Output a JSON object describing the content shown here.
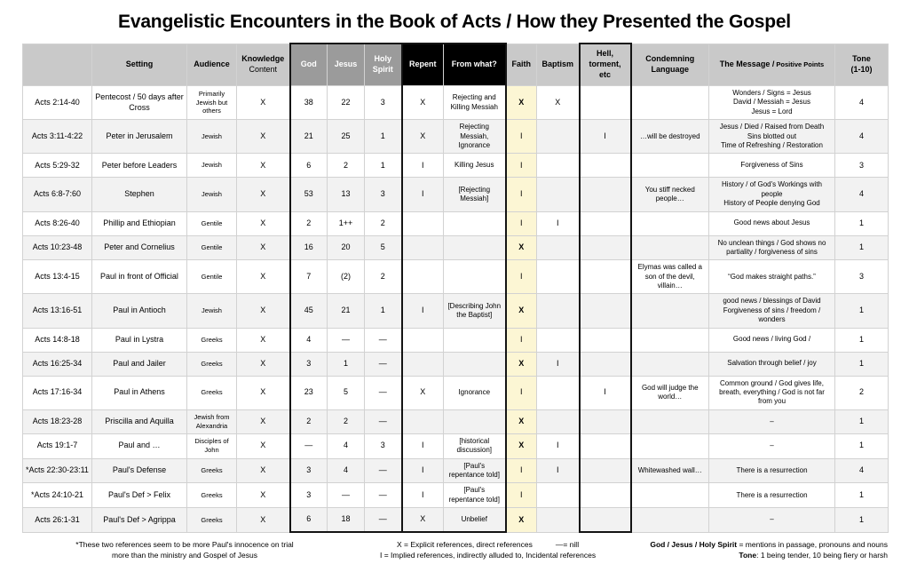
{
  "title": {
    "bold": "Evangelistic Encounters in the Book of Acts /",
    "regular": " How they Presented the Gospel"
  },
  "table": {
    "headers": {
      "ref": "",
      "setting": "Setting",
      "audience": "Audience",
      "knowledge_line1": "Knowledge",
      "knowledge_line2": "Content",
      "god": "God",
      "jesus": "Jesus",
      "holy_spirit": "Holy Spirit",
      "repent": "Repent",
      "from_what": "From what?",
      "faith": "Faith",
      "baptism": "Baptism",
      "hell": "Hell, torment, etc",
      "condemning": "Condemning Language",
      "message_main": "The Message /",
      "message_sub": " Positive Points",
      "tone_line1": "Tone",
      "tone_line2": "(1-10)"
    },
    "rows": [
      {
        "ref": "Acts 2:14-40",
        "setting": "Pentecost / 50 days after Cross",
        "audience": "Primarily Jewish but others",
        "knowledge": "X",
        "god": "38",
        "jesus": "22",
        "holy_spirit": "3",
        "repent": "X",
        "from_what": "Rejecting and Killing Messiah",
        "faith": "X",
        "baptism": "X",
        "hell": "",
        "condemning": "",
        "message": [
          "Wonders / Signs = Jesus",
          "David / Messiah = Jesus",
          "Jesus = Lord"
        ],
        "tone": "4"
      },
      {
        "ref": "Acts 3:11-4:22",
        "setting": "Peter in Jerusalem",
        "audience": "Jewish",
        "knowledge": "X",
        "god": "21",
        "jesus": "25",
        "holy_spirit": "1",
        "repent": "X",
        "from_what": "Rejecting Messiah, Ignorance",
        "faith": "I",
        "baptism": "",
        "hell": "I",
        "condemning": "…will be destroyed",
        "message": [
          "Jesus / Died / Raised from Death",
          "Sins blotted out",
          "Time of Refreshing / Restoration"
        ],
        "tone": "4"
      },
      {
        "ref": "Acts 5:29-32",
        "setting": "Peter before Leaders",
        "audience": "Jewish",
        "knowledge": "X",
        "god": "6",
        "jesus": "2",
        "holy_spirit": "1",
        "repent": "I",
        "from_what": "Killing Jesus",
        "faith": "I",
        "baptism": "",
        "hell": "",
        "condemning": "",
        "message": [
          "Forgiveness of Sins"
        ],
        "tone": "3"
      },
      {
        "ref": "Acts 6:8-7:60",
        "setting": "Stephen",
        "audience": "Jewish",
        "knowledge": "X",
        "god": "53",
        "jesus": "13",
        "holy_spirit": "3",
        "repent": "I",
        "from_what": "[Rejecting Messiah]",
        "faith": "I",
        "baptism": "",
        "hell": "",
        "condemning": "You stiff necked people…",
        "message": [
          "History / of God's Workings with people",
          "History of People denying God"
        ],
        "tone": "4"
      },
      {
        "ref": "Acts 8:26-40",
        "setting": "Phillip and Ethiopian",
        "audience": "Gentile",
        "knowledge": "X",
        "god": "2",
        "jesus": "1++",
        "holy_spirit": "2",
        "repent": "",
        "from_what": "",
        "faith": "I",
        "baptism": "I",
        "hell": "",
        "condemning": "",
        "message": [
          "Good news about Jesus"
        ],
        "tone": "1"
      },
      {
        "ref": "Acts 10:23-48",
        "setting": "Peter and Cornelius",
        "audience": "Gentile",
        "knowledge": "X",
        "god": "16",
        "jesus": "20",
        "holy_spirit": "5",
        "repent": "",
        "from_what": "",
        "faith": "X",
        "baptism": "",
        "hell": "",
        "condemning": "",
        "message": [
          "No unclean things / God shows no partiality / forgiveness of sins"
        ],
        "tone": "1"
      },
      {
        "ref": "Acts 13:4-15",
        "setting": "Paul in front of Official",
        "audience": "Gentile",
        "knowledge": "X",
        "god": "7",
        "jesus": "(2)",
        "holy_spirit": "2",
        "repent": "",
        "from_what": "",
        "faith": "I",
        "baptism": "",
        "hell": "",
        "condemning": "Elymas was called a son of the devil, villain…",
        "message": [
          "“God makes straight paths.”"
        ],
        "tone": "3"
      },
      {
        "ref": "Acts 13:16-51",
        "setting": "Paul in Antioch",
        "audience": "Jewish",
        "knowledge": "X",
        "god": "45",
        "jesus": "21",
        "holy_spirit": "1",
        "repent": "I",
        "from_what": "[Describing John the Baptist]",
        "faith": "X",
        "baptism": "",
        "hell": "",
        "condemning": "",
        "message": [
          "good news / blessings of David",
          "Forgiveness of sins / freedom / wonders"
        ],
        "tone": "1"
      },
      {
        "ref": "Acts 14:8-18",
        "setting": "Paul in Lystra",
        "audience": "Greeks",
        "knowledge": "X",
        "god": "4",
        "jesus": "—",
        "holy_spirit": "—",
        "repent": "",
        "from_what": "",
        "faith": "I",
        "baptism": "",
        "hell": "",
        "condemning": "",
        "message": [
          "Good news / living God /"
        ],
        "tone": "1"
      },
      {
        "ref": "Acts 16:25-34",
        "setting": "Paul and Jailer",
        "audience": "Greeks",
        "knowledge": "X",
        "god": "3",
        "jesus": "1",
        "holy_spirit": "—",
        "repent": "",
        "from_what": "",
        "faith": "X",
        "baptism": "I",
        "hell": "",
        "condemning": "",
        "message": [
          "Salvation through belief / joy"
        ],
        "tone": "1"
      },
      {
        "ref": "Acts 17:16-34",
        "setting": "Paul in Athens",
        "audience": "Greeks",
        "knowledge": "X",
        "god": "23",
        "jesus": "5",
        "holy_spirit": "—",
        "repent": "X",
        "from_what": "Ignorance",
        "faith": "I",
        "baptism": "",
        "hell": "I",
        "condemning": "God will judge the world…",
        "message": [
          "Common ground / God gives life, breath, everything / God is not far from you"
        ],
        "tone": "2"
      },
      {
        "ref": "Acts 18:23-28",
        "setting": "Priscilla and Aquilla",
        "audience": "Jewish from Alexandria",
        "knowledge": "X",
        "god": "2",
        "jesus": "2",
        "holy_spirit": "—",
        "repent": "",
        "from_what": "",
        "faith": "X",
        "baptism": "",
        "hell": "",
        "condemning": "",
        "message": [
          "–"
        ],
        "tone": "1"
      },
      {
        "ref": "Acts 19:1-7",
        "setting": "Paul and …",
        "audience": "Disciples of John",
        "knowledge": "X",
        "god": "—",
        "jesus": "4",
        "holy_spirit": "3",
        "repent": "I",
        "from_what": "[historical discussion]",
        "faith": "X",
        "baptism": "I",
        "hell": "",
        "condemning": "",
        "message": [
          "–"
        ],
        "tone": "1"
      },
      {
        "ref": "*Acts 22:30-23:11",
        "setting": "Paul's Defense",
        "audience": "Greeks",
        "knowledge": "X",
        "god": "3",
        "jesus": "4",
        "holy_spirit": "—",
        "repent": "I",
        "from_what": "[Paul's repentance told]",
        "faith": "I",
        "baptism": "I",
        "hell": "",
        "condemning": "Whitewashed wall…",
        "message": [
          "There is a resurrection"
        ],
        "tone": "4"
      },
      {
        "ref": "*Acts 24:10-21",
        "setting": "Paul's Def > Felix",
        "audience": "Greeks",
        "knowledge": "X",
        "god": "3",
        "jesus": "—",
        "holy_spirit": "—",
        "repent": "I",
        "from_what": "[Paul's repentance told]",
        "faith": "I",
        "baptism": "",
        "hell": "",
        "condemning": "",
        "message": [
          "There is a resurrection"
        ],
        "tone": "1"
      },
      {
        "ref": "Acts 26:1-31",
        "setting": "Paul's Def > Agrippa",
        "audience": "Greeks",
        "knowledge": "X",
        "god": "6",
        "jesus": "18",
        "holy_spirit": "—",
        "repent": "X",
        "from_what": "Unbelief",
        "faith": "X",
        "baptism": "",
        "hell": "",
        "condemning": "",
        "message": [
          "–"
        ],
        "tone": "1"
      }
    ]
  },
  "footnotes": {
    "left_line1": "*These two references seem to be more Paul's innocence on trial",
    "left_line2": "more than the ministry and Gospel of Jesus",
    "center_x": "X = Explicit references, direct references",
    "center_nill": "—= nill",
    "center_line2": "I = Implied references, indirectly alluded to, Incidental references",
    "right_bold1": "God / Jesus / Holy Spirit",
    "right_rest1": " = mentions in passage, pronouns and nouns",
    "right_bold2": "Tone",
    "right_rest2": ": 1 being tender, 10 being fiery or harsh"
  },
  "colors": {
    "header_gray": "#c9c9c9",
    "header_dark_gray": "#9b9b9b",
    "header_black": "#000000",
    "faith_highlight": "#fcf6d4",
    "alt_row": "#f2f2f2",
    "thick_border": "#141414"
  }
}
